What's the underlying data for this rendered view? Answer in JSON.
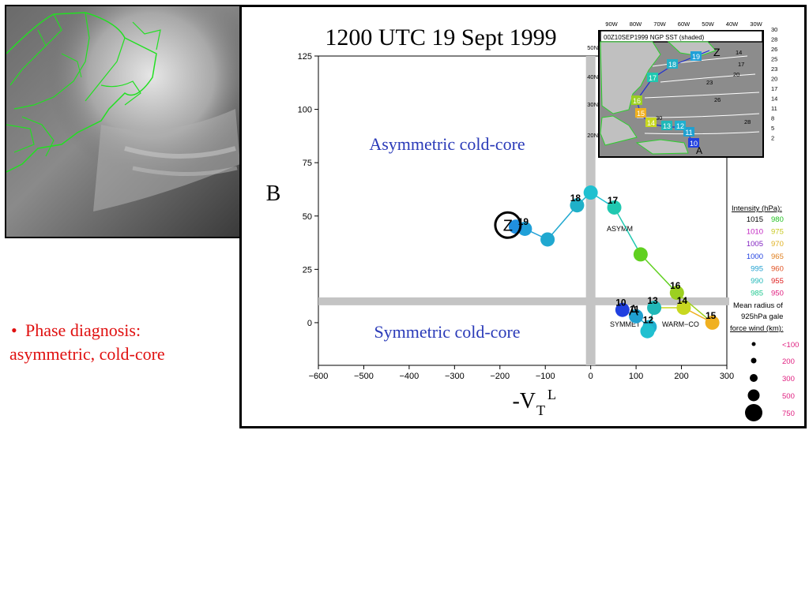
{
  "slide": {
    "bullet_line1": "Phase diagnosis:",
    "bullet_line2": "asymmetric, cold-core",
    "bullet_color": "#e01010"
  },
  "satellite": {
    "description_icon": "satellite-image-icon"
  },
  "chart_data": {
    "type": "line",
    "title": "1200 UTC 19 Sept 1999",
    "xlabel": "-V",
    "xlabel_sub": "T",
    "xlabel_sup": "L",
    "ylabel": "B",
    "xlim": [
      -600,
      300
    ],
    "ylim": [
      -20,
      125
    ],
    "xticks": [
      -600,
      -500,
      -400,
      -300,
      -200,
      -100,
      0,
      100,
      200,
      300
    ],
    "yticks": [
      0,
      25,
      50,
      75,
      100,
      125
    ],
    "xtick_labels": [
      "−600",
      "−500",
      "−400",
      "−300",
      "−200",
      "−100",
      "0",
      "100",
      "200",
      "300"
    ],
    "ytick_labels": [
      "0",
      "25",
      "50",
      "75",
      "100",
      "125"
    ],
    "quadrant_labels": {
      "upper": "Asymmetric cold-core",
      "lower": "Symmetric cold-core",
      "asymm": "ASYMM",
      "symmetric": "SYMMET",
      "warm": "WARM−CO"
    },
    "end_marker": "Z",
    "start_marker": "A",
    "points": [
      {
        "label": "10",
        "x": 70,
        "y": 6,
        "color": "#2040e0"
      },
      {
        "label": "11",
        "x": 100,
        "y": 3,
        "color": "#20a0d0"
      },
      {
        "label": "12",
        "x": 130,
        "y": -2,
        "color": "#20b0d0"
      },
      {
        "label": "",
        "x": 125,
        "y": -4,
        "color": "#20c0d0"
      },
      {
        "label": "13",
        "x": 140,
        "y": 7,
        "color": "#20b8b8"
      },
      {
        "label": "14",
        "x": 205,
        "y": 7,
        "color": "#c8d820"
      },
      {
        "label": "15",
        "x": 268,
        "y": 0,
        "color": "#f0b020"
      },
      {
        "label": "16",
        "x": 190,
        "y": 14,
        "color": "#9cd020"
      },
      {
        "label": "",
        "x": 110,
        "y": 32,
        "color": "#60d020"
      },
      {
        "label": "17",
        "x": 52,
        "y": 54,
        "color": "#20c8b0"
      },
      {
        "label": "",
        "x": 0,
        "y": 61,
        "color": "#20c0d0"
      },
      {
        "label": "18",
        "x": -30,
        "y": 55,
        "color": "#20b0c8"
      },
      {
        "label": "",
        "x": -95,
        "y": 39,
        "color": "#20a8d0"
      },
      {
        "label": "19",
        "x": -145,
        "y": 44,
        "color": "#20a0d8"
      },
      {
        "label": "",
        "x": -165,
        "y": 45,
        "color": "#2090e0"
      }
    ],
    "legend": {
      "intensity_title": "Intensity (hPa):",
      "intensity_rows": [
        {
          "a": "1015",
          "a_color": "#000000",
          "b": "980",
          "b_color": "#20c020"
        },
        {
          "a": "1010",
          "a_color": "#c020c0",
          "b": "975",
          "b_color": "#c8c820"
        },
        {
          "a": "1005",
          "a_color": "#8020c0",
          "b": "970",
          "b_color": "#e0b020"
        },
        {
          "a": "1000",
          "a_color": "#2040e0",
          "b": "965",
          "b_color": "#e08020"
        },
        {
          "a": "995",
          "a_color": "#20a0d0",
          "b": "960",
          "b_color": "#e05020"
        },
        {
          "a": "990",
          "a_color": "#20b8b8",
          "b": "955",
          "b_color": "#e02020"
        },
        {
          "a": "985",
          "a_color": "#20c890",
          "b": "950",
          "b_color": "#e02080"
        }
      ],
      "radius_title_1": "Mean radius of",
      "radius_title_2": "925hPa gale",
      "radius_title_3": "force wind (km):",
      "radius_rows": [
        {
          "label": "<100",
          "color": "#e02080"
        },
        {
          "label": "200",
          "color": "#e02080"
        },
        {
          "label": "300",
          "color": "#e02080"
        },
        {
          "label": "500",
          "color": "#e02080"
        },
        {
          "label": "750",
          "color": "#e02080"
        }
      ]
    },
    "inset_map": {
      "header": "00Z10SEP1999 NGP SST (shaded)",
      "lon_labels": [
        "90W",
        "80W",
        "70W",
        "60W",
        "50W",
        "40W",
        "30W"
      ],
      "lat_labels": [
        "50N",
        "40N",
        "30N",
        "20N"
      ],
      "sst_scale": [
        "30",
        "28",
        "26",
        "25",
        "23",
        "20",
        "17",
        "14",
        "11",
        "8",
        "5",
        "2"
      ],
      "track_labels": [
        "10",
        "11",
        "12",
        "13",
        "14",
        "15",
        "16",
        "17",
        "18",
        "19"
      ],
      "contour_labels": [
        "14",
        "17",
        "20",
        "23",
        "26",
        "28",
        "30"
      ]
    }
  }
}
